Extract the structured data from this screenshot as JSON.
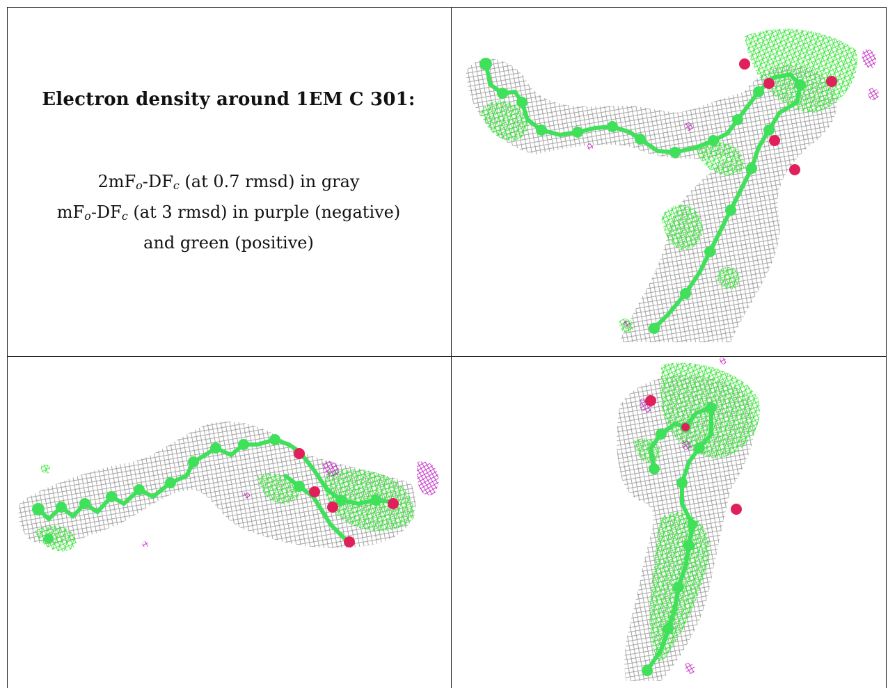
{
  "caption": {
    "title": "Electron density around 1EM C 301:",
    "line1": {
      "prefix": "2mF",
      "sub1": "o",
      "mid": "-DF",
      "sub2": "c",
      "suffix": " (at 0.7 rmsd) in gray"
    },
    "line2": {
      "prefix": "mF",
      "sub1": "o",
      "mid": "-DF",
      "sub2": "c",
      "suffix": " (at 3 rmsd) in purple (negative)"
    },
    "line3": "and green (positive)"
  },
  "colors": {
    "mesh_2fofc": "#8a8a8a",
    "mesh_positive": "#33e633",
    "mesh_negative": "#c020c0",
    "carbon_atom": "#3fe05a",
    "oxygen_atom": "#e0205a"
  },
  "panels": [
    {
      "name": "view-top-right"
    },
    {
      "name": "view-bottom-left"
    },
    {
      "name": "view-bottom-right"
    }
  ]
}
